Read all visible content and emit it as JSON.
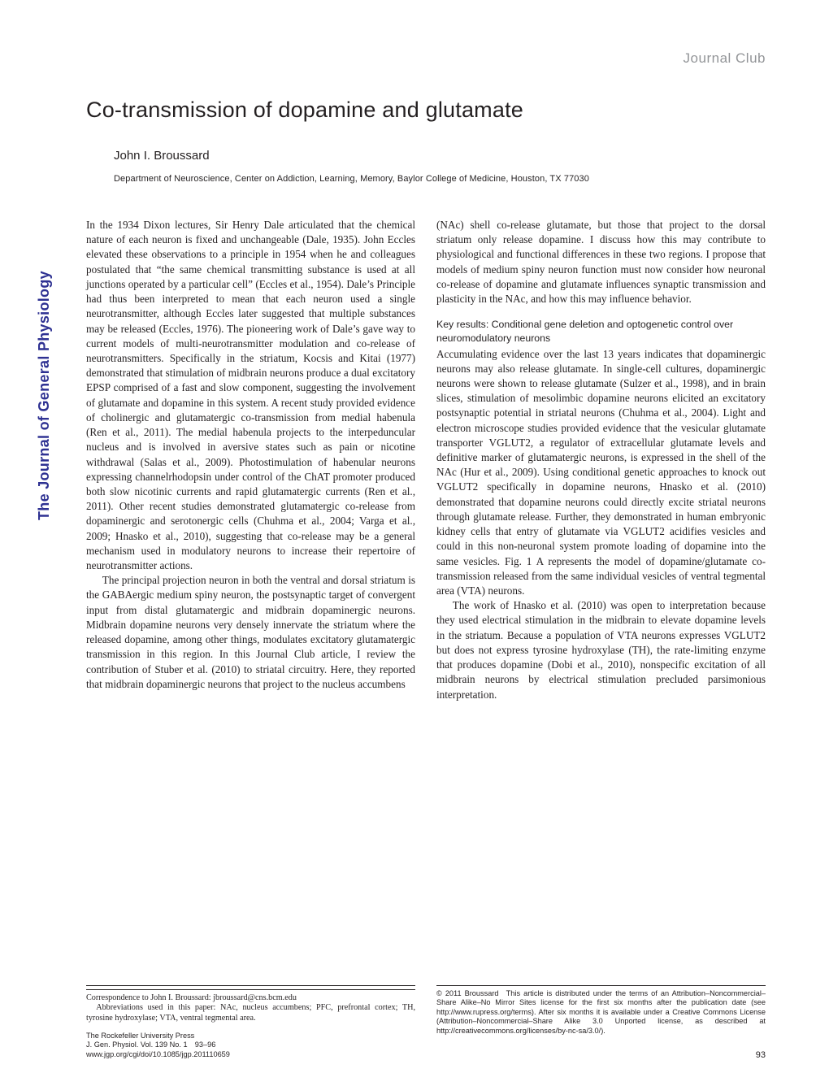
{
  "header": {
    "section_label": "Journal Club"
  },
  "title": "Co-transmission of dopamine and glutamate",
  "author": "John I. Broussard",
  "affiliation": "Department of Neuroscience, Center on Addiction, Learning, Memory, Baylor College of Medicine, Houston, TX 77030",
  "sidebar": "The Journal of General Physiology",
  "body": {
    "left": {
      "p1": "In the 1934 Dixon lectures, Sir Henry Dale articulated that the chemical nature of each neuron is fixed and unchangeable (Dale, 1935). John Eccles elevated these observations to a principle in 1954 when he and colleagues postulated that “the same chemical transmitting substance is used at all junctions operated by a particular cell” (Eccles et al., 1954). Dale’s Principle had thus been interpreted to mean that each neuron used a single neurotransmitter, although Eccles later suggested that multiple substances may be released (Eccles, 1976). The pioneering work of Dale’s gave way to current models of multi-neurotransmitter modulation and co-release of neurotransmitters. Specifically in the striatum, Kocsis and Kitai (1977) demonstrated that stimulation of midbrain neurons produce a dual excitatory EPSP comprised of a fast and slow component, suggesting the involvement of glutamate and dopamine in this system. A recent study provided evidence of cholinergic and glutamatergic co-transmission from medial habenula (Ren et al., 2011). The medial habenula projects to the interpeduncular nucleus and is involved in aversive states such as pain or nicotine withdrawal (Salas et al., 2009). Photostimulation of habenular neurons expressing channelrhodopsin under control of the ChAT promoter produced both slow nicotinic currents and rapid glutamatergic currents (Ren et al., 2011). Other recent studies demonstrated glutamatergic co-release from dopaminergic and serotonergic cells (Chuhma et al., 2004; Varga et al., 2009; Hnasko et al., 2010), suggesting that co-release may be a general mechanism used in modulatory neurons to increase their repertoire of neurotransmitter actions.",
      "p2": "The principal projection neuron in both the ventral and dorsal striatum is the GABAergic medium spiny neuron, the postsynaptic target of convergent input from distal glutamatergic and midbrain dopaminergic neurons. Midbrain dopamine neurons very densely innervate the striatum where the released dopamine, among other things, modulates excitatory glutamatergic transmission in this region. In this Journal Club article, I review the contribution of Stuber et al. (2010) to striatal circuitry. Here, they reported that midbrain dopaminergic neurons that project to the nucleus accumbens"
    },
    "right": {
      "p1": "(NAc) shell co-release glutamate, but those that project to the dorsal striatum only release dopamine. I discuss how this may contribute to physiological and functional differences in these two regions. I propose that models of medium spiny neuron function must now consider how neuronal co-release of dopamine and glutamate influences synaptic transmission and plasticity in the NAc, and how this may influence behavior.",
      "subhead": "Key results: Conditional gene deletion and optogenetic control over neuromodulatory neurons",
      "p2": "Accumulating evidence over the last 13 years indicates that dopaminergic neurons may also release glutamate. In single-cell cultures, dopaminergic neurons were shown to release glutamate (Sulzer et al., 1998), and in brain slices, stimulation of mesolimbic dopamine neurons elicited an excitatory postsynaptic potential in striatal neurons (Chuhma et al., 2004). Light and electron microscope studies provided evidence that the vesicular glutamate transporter VGLUT2, a regulator of extracellular glutamate levels and definitive marker of glutamatergic neurons, is expressed in the shell of the NAc (Hur et al., 2009). Using conditional genetic approaches to knock out VGLUT2 specifically in dopamine neurons, Hnasko et al. (2010) demonstrated that dopamine neurons could directly excite striatal neurons through glutamate release. Further, they demonstrated in human embryonic kidney cells that entry of glutamate via VGLUT2 acidifies vesicles and could in this non-neuronal system promote loading of dopamine into the same vesicles. Fig. 1 A represents the model of dopamine/glutamate co-transmission released from the same individual vesicles of ventral tegmental area (VTA) neurons.",
      "p3": "The work of Hnasko et al. (2010) was open to interpretation because they used electrical stimulation in the midbrain to elevate dopamine levels in the striatum. Because a population of VTA neurons expresses VGLUT2 but does not express tyrosine hydroxylase (TH), the rate-limiting enzyme that produces dopamine (Dobi et al., 2010), nonspecific excitation of all midbrain neurons by electrical stimulation precluded parsimonious interpretation."
    }
  },
  "footnotes": {
    "left": {
      "correspondence": "Correspondence to John I. Broussard: jbroussard@cns.bcm.edu",
      "abbreviations": "Abbreviations used in this paper: NAc, nucleus accumbens; PFC, prefrontal cortex; TH, tyrosine hydroxylase; VTA, ventral tegmental area."
    },
    "right": {
      "copyright": "© 2011 Broussard This article is distributed under the terms of an Attribution–Noncommercial–Share Alike–No Mirror Sites license for the first six months after the publication date (see http://www.rupress.org/terms). After six months it is available under a Creative Commons License (Attribution–Noncommercial–Share Alike 3.0 Unported license, as described at http://creativecommons.org/licenses/by-nc-sa/3.0/)."
    }
  },
  "press": {
    "l1": "The Rockefeller University Press",
    "l2": "J. Gen. Physiol. Vol. 139 No. 1 93–96",
    "l3": "www.jgp.org/cgi/doi/10.1085/jgp.201110659"
  },
  "page_number": "93",
  "colors": {
    "text": "#231f20",
    "gray": "#939598",
    "sidebar": "#2e3192",
    "background": "#ffffff"
  }
}
